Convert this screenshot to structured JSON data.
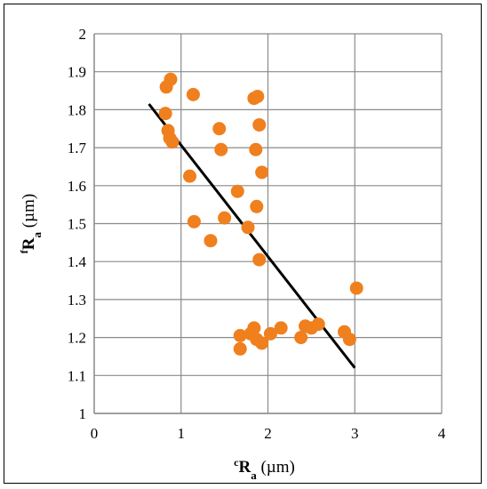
{
  "chart_data": {
    "type": "scatter",
    "title": "",
    "xlabel": {
      "sup": "c",
      "main": "R",
      "sub": "a",
      "unit": " (µm)"
    },
    "ylabel": {
      "sup": "f",
      "main": "R",
      "sub": "a",
      "unit": " (µm)"
    },
    "xlim": [
      0,
      4
    ],
    "ylim": [
      1,
      2
    ],
    "x_ticks": [
      "0",
      "1",
      "2",
      "3",
      "4"
    ],
    "y_ticks": [
      "1",
      "1.1",
      "1.2",
      "1.3",
      "1.4",
      "1.5",
      "1.6",
      "1.7",
      "1.8",
      "1.9",
      "2"
    ],
    "grid": true,
    "legend": "none",
    "marker_color": "#F07F1E",
    "line_color": "#000000",
    "series": [
      {
        "points": [
          {
            "x": 0.88,
            "y": 1.88
          },
          {
            "x": 0.83,
            "y": 1.86
          },
          {
            "x": 0.82,
            "y": 1.79
          },
          {
            "x": 0.85,
            "y": 1.745
          },
          {
            "x": 0.87,
            "y": 1.725
          },
          {
            "x": 0.9,
            "y": 1.715
          },
          {
            "x": 1.14,
            "y": 1.84
          },
          {
            "x": 1.44,
            "y": 1.75
          },
          {
            "x": 1.46,
            "y": 1.695
          },
          {
            "x": 1.1,
            "y": 1.625
          },
          {
            "x": 1.15,
            "y": 1.505
          },
          {
            "x": 1.5,
            "y": 1.515
          },
          {
            "x": 1.34,
            "y": 1.455
          },
          {
            "x": 1.65,
            "y": 1.585
          },
          {
            "x": 1.77,
            "y": 1.49
          },
          {
            "x": 1.84,
            "y": 1.83
          },
          {
            "x": 1.88,
            "y": 1.835
          },
          {
            "x": 1.9,
            "y": 1.76
          },
          {
            "x": 1.86,
            "y": 1.695
          },
          {
            "x": 1.93,
            "y": 1.635
          },
          {
            "x": 1.87,
            "y": 1.545
          },
          {
            "x": 1.9,
            "y": 1.405
          },
          {
            "x": 1.68,
            "y": 1.205
          },
          {
            "x": 1.68,
            "y": 1.17
          },
          {
            "x": 1.8,
            "y": 1.21
          },
          {
            "x": 1.84,
            "y": 1.225
          },
          {
            "x": 1.87,
            "y": 1.195
          },
          {
            "x": 1.93,
            "y": 1.185
          },
          {
            "x": 2.03,
            "y": 1.21
          },
          {
            "x": 2.15,
            "y": 1.225
          },
          {
            "x": 2.38,
            "y": 1.2
          },
          {
            "x": 2.43,
            "y": 1.23
          },
          {
            "x": 2.5,
            "y": 1.225
          },
          {
            "x": 2.58,
            "y": 1.235
          },
          {
            "x": 2.88,
            "y": 1.215
          },
          {
            "x": 2.94,
            "y": 1.195
          },
          {
            "x": 3.02,
            "y": 1.33
          }
        ]
      }
    ],
    "trendline": {
      "x1": 0.63,
      "y1": 1.815,
      "x2": 3.0,
      "y2": 1.12
    }
  }
}
